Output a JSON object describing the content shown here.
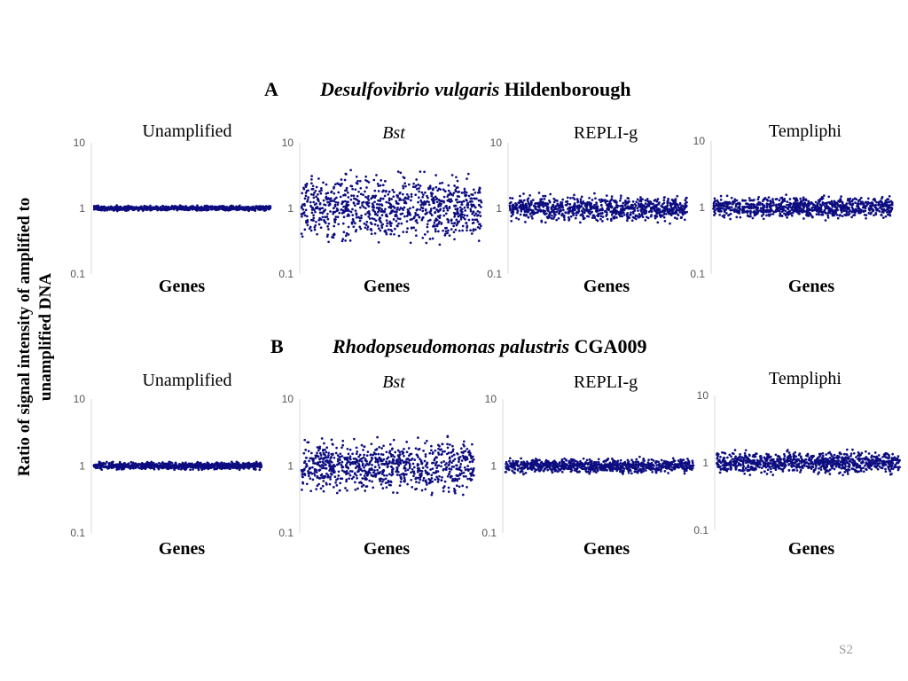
{
  "page": {
    "ylabel_line1": "Ratio of signal intensity of amplified to",
    "ylabel_line2": "unamplified DNA",
    "slide_number": "S2"
  },
  "sections": [
    {
      "label": "A",
      "organism_italic": "Desulfovibrio vulgaris",
      "organism_strain": "Hildenborough"
    },
    {
      "label": "B",
      "organism_italic": "Rhodopseudomonas palustris",
      "organism_strain": "CGA009"
    }
  ],
  "point_color": "#0d0d80",
  "chart_data": [
    {
      "type": "scatter",
      "section": "A",
      "title": "Unamplified",
      "title_italic": false,
      "xlabel": "Genes",
      "yscale": "log",
      "ylim": [
        0.1,
        10
      ],
      "yticks": [
        "10",
        "1",
        "0.1"
      ],
      "points_around": 1.0,
      "y_range": [
        0.9,
        1.12
      ]
    },
    {
      "type": "scatter",
      "section": "A",
      "title": "Bst",
      "title_italic": true,
      "xlabel": "Genes",
      "yscale": "log",
      "ylim": [
        0.1,
        10
      ],
      "yticks": [
        "10",
        "1",
        "0.1"
      ],
      "points_around": 1.0,
      "y_range": [
        0.22,
        4.5
      ]
    },
    {
      "type": "scatter",
      "section": "A",
      "title": "REPLI-g",
      "title_italic": false,
      "xlabel": "Genes",
      "yscale": "log",
      "ylim": [
        0.1,
        10
      ],
      "yticks": [
        "10",
        "1",
        "0.1"
      ],
      "points_around": 1.0,
      "y_range": [
        0.55,
        1.8
      ]
    },
    {
      "type": "scatter",
      "section": "A",
      "title": "Templiphi",
      "title_italic": false,
      "xlabel": "Genes",
      "yscale": "log",
      "ylim": [
        0.1,
        10
      ],
      "yticks": [
        "10",
        "1",
        "0.1"
      ],
      "points_around": 1.0,
      "y_range": [
        0.62,
        1.6
      ]
    },
    {
      "type": "scatter",
      "section": "B",
      "title": "Unamplified",
      "title_italic": false,
      "xlabel": "Genes",
      "yscale": "log",
      "ylim": [
        0.1,
        10
      ],
      "yticks": [
        "10",
        "1",
        "0.1"
      ],
      "points_around": 1.0,
      "y_range": [
        0.85,
        1.18
      ]
    },
    {
      "type": "scatter",
      "section": "B",
      "title": "Bst",
      "title_italic": true,
      "xlabel": "Genes",
      "yscale": "log",
      "ylim": [
        0.1,
        10
      ],
      "yticks": [
        "10",
        "1",
        "0.1"
      ],
      "points_around": 1.0,
      "y_range": [
        0.3,
        3.2
      ]
    },
    {
      "type": "scatter",
      "section": "B",
      "title": "REPLI-g",
      "title_italic": false,
      "xlabel": "Genes",
      "yscale": "log",
      "ylim": [
        0.1,
        10
      ],
      "yticks": [
        "10",
        "1",
        "0.1"
      ],
      "points_around": 1.0,
      "y_range": [
        0.72,
        1.4
      ]
    },
    {
      "type": "scatter",
      "section": "B",
      "title": "Templiphi",
      "title_italic": false,
      "xlabel": "Genes",
      "yscale": "log",
      "ylim": [
        0.1,
        10
      ],
      "yticks": [
        "10",
        "1",
        "0.1"
      ],
      "points_around": 1.0,
      "y_range": [
        0.62,
        1.65
      ]
    }
  ]
}
